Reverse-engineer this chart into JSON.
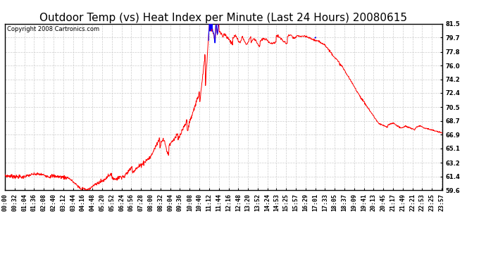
{
  "title": "Outdoor Temp (vs) Heat Index per Minute (Last 24 Hours) 20080615",
  "copyright": "Copyright 2008 Cartronics.com",
  "bg_color": "#ffffff",
  "plot_bg_color": "#ffffff",
  "line_color_red": "#ff0000",
  "line_color_blue": "#0000ff",
  "yticks": [
    59.6,
    61.4,
    63.2,
    65.1,
    66.9,
    68.7,
    70.5,
    72.4,
    74.2,
    76.0,
    77.8,
    79.7,
    81.5
  ],
  "ylim": [
    59.6,
    81.5
  ],
  "grid_color": "#cccccc",
  "grid_style": "--",
  "title_fontsize": 11,
  "tick_fontsize": 6,
  "copyright_fontsize": 6,
  "xtick_labels": [
    "00:00",
    "00:32",
    "01:04",
    "01:36",
    "02:08",
    "02:40",
    "03:12",
    "03:44",
    "04:16",
    "04:48",
    "05:20",
    "05:52",
    "06:24",
    "06:56",
    "07:28",
    "08:00",
    "08:32",
    "09:04",
    "09:36",
    "10:08",
    "10:40",
    "11:12",
    "11:44",
    "12:16",
    "12:48",
    "13:20",
    "13:52",
    "14:24",
    "14:53",
    "15:25",
    "15:57",
    "16:29",
    "17:01",
    "17:33",
    "18:05",
    "18:37",
    "19:09",
    "19:41",
    "20:13",
    "20:45",
    "21:17",
    "21:49",
    "22:21",
    "22:53",
    "23:25",
    "23:57"
  ]
}
